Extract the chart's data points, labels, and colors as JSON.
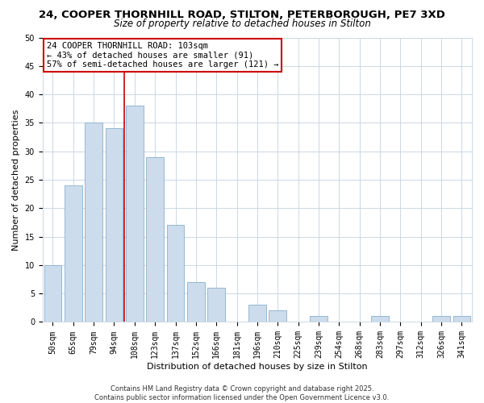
{
  "title1": "24, COOPER THORNHILL ROAD, STILTON, PETERBOROUGH, PE7 3XD",
  "title2": "Size of property relative to detached houses in Stilton",
  "xlabel": "Distribution of detached houses by size in Stilton",
  "ylabel": "Number of detached properties",
  "categories": [
    "50sqm",
    "65sqm",
    "79sqm",
    "94sqm",
    "108sqm",
    "123sqm",
    "137sqm",
    "152sqm",
    "166sqm",
    "181sqm",
    "196sqm",
    "210sqm",
    "225sqm",
    "239sqm",
    "254sqm",
    "268sqm",
    "283sqm",
    "297sqm",
    "312sqm",
    "326sqm",
    "341sqm"
  ],
  "values": [
    10,
    24,
    35,
    34,
    38,
    29,
    17,
    7,
    6,
    0,
    3,
    2,
    0,
    1,
    0,
    0,
    1,
    0,
    0,
    1,
    1
  ],
  "bar_color": "#ccdcec",
  "bar_edge_color": "#8ab0cc",
  "ylim": [
    0,
    50
  ],
  "yticks": [
    0,
    5,
    10,
    15,
    20,
    25,
    30,
    35,
    40,
    45,
    50
  ],
  "property_line_index": 3.5,
  "annotation_title": "24 COOPER THORNHILL ROAD: 103sqm",
  "annotation_line1": "← 43% of detached houses are smaller (91)",
  "annotation_line2": "57% of semi-detached houses are larger (121) →",
  "annotation_box_color": "#ffffff",
  "annotation_box_edge_color": "#cc0000",
  "property_line_color": "#cc0000",
  "footer1": "Contains HM Land Registry data © Crown copyright and database right 2025.",
  "footer2": "Contains public sector information licensed under the Open Government Licence v3.0.",
  "background_color": "#ffffff",
  "grid_color": "#ccd8e4",
  "title1_fontsize": 9.5,
  "title2_fontsize": 8.5,
  "axis_label_fontsize": 8,
  "tick_fontsize": 7,
  "annotation_fontsize": 7.5,
  "footer_fontsize": 6
}
